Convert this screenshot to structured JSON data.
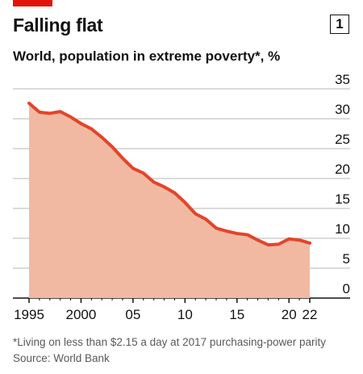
{
  "header": {
    "title": "Falling flat",
    "chart_number": "1",
    "subtitle": "World, population in extreme poverty*, %"
  },
  "footnote": {
    "note": "*Living on less than $2.15 a day at 2017 purchasing-power parity",
    "source": "Source: World Bank"
  },
  "colors": {
    "line": "#e3452a",
    "fill": "#f2b9a2",
    "brand_red": "#e3120b",
    "grid": "#b7b7b7",
    "text": "#121212"
  },
  "chart_data": {
    "type": "area",
    "title": "Falling flat",
    "subtitle": "World, population in extreme poverty*, %",
    "xlabel": "",
    "ylabel": "",
    "x": [
      1995,
      1996,
      1997,
      1998,
      1999,
      2000,
      2001,
      2002,
      2003,
      2004,
      2005,
      2006,
      2007,
      2008,
      2009,
      2010,
      2011,
      2012,
      2013,
      2014,
      2015,
      2016,
      2017,
      2018,
      2019,
      2020,
      2021,
      2022
    ],
    "series": [
      {
        "values": [
          32.6,
          31.1,
          30.9,
          31.2,
          30.3,
          29.2,
          28.3,
          26.9,
          25.3,
          23.4,
          21.7,
          20.9,
          19.4,
          18.6,
          17.6,
          16.0,
          14.1,
          13.2,
          11.7,
          11.2,
          10.8,
          10.6,
          9.7,
          8.9,
          9.0,
          9.9,
          9.7,
          9.2
        ]
      }
    ],
    "ylim": [
      0,
      35
    ],
    "y_ticks": [
      0,
      5,
      10,
      15,
      20,
      25,
      30,
      35
    ],
    "y_tick_labels": [
      "0",
      "5",
      "10",
      "15",
      "20",
      "25",
      "30",
      "35"
    ],
    "x_ticks": [
      1995,
      2000,
      2005,
      2010,
      2015,
      2020,
      2022
    ],
    "x_tick_labels": [
      "1995",
      "2000",
      "05",
      "10",
      "15",
      "20",
      "22"
    ],
    "grid": true,
    "y_axis_side": "right"
  }
}
